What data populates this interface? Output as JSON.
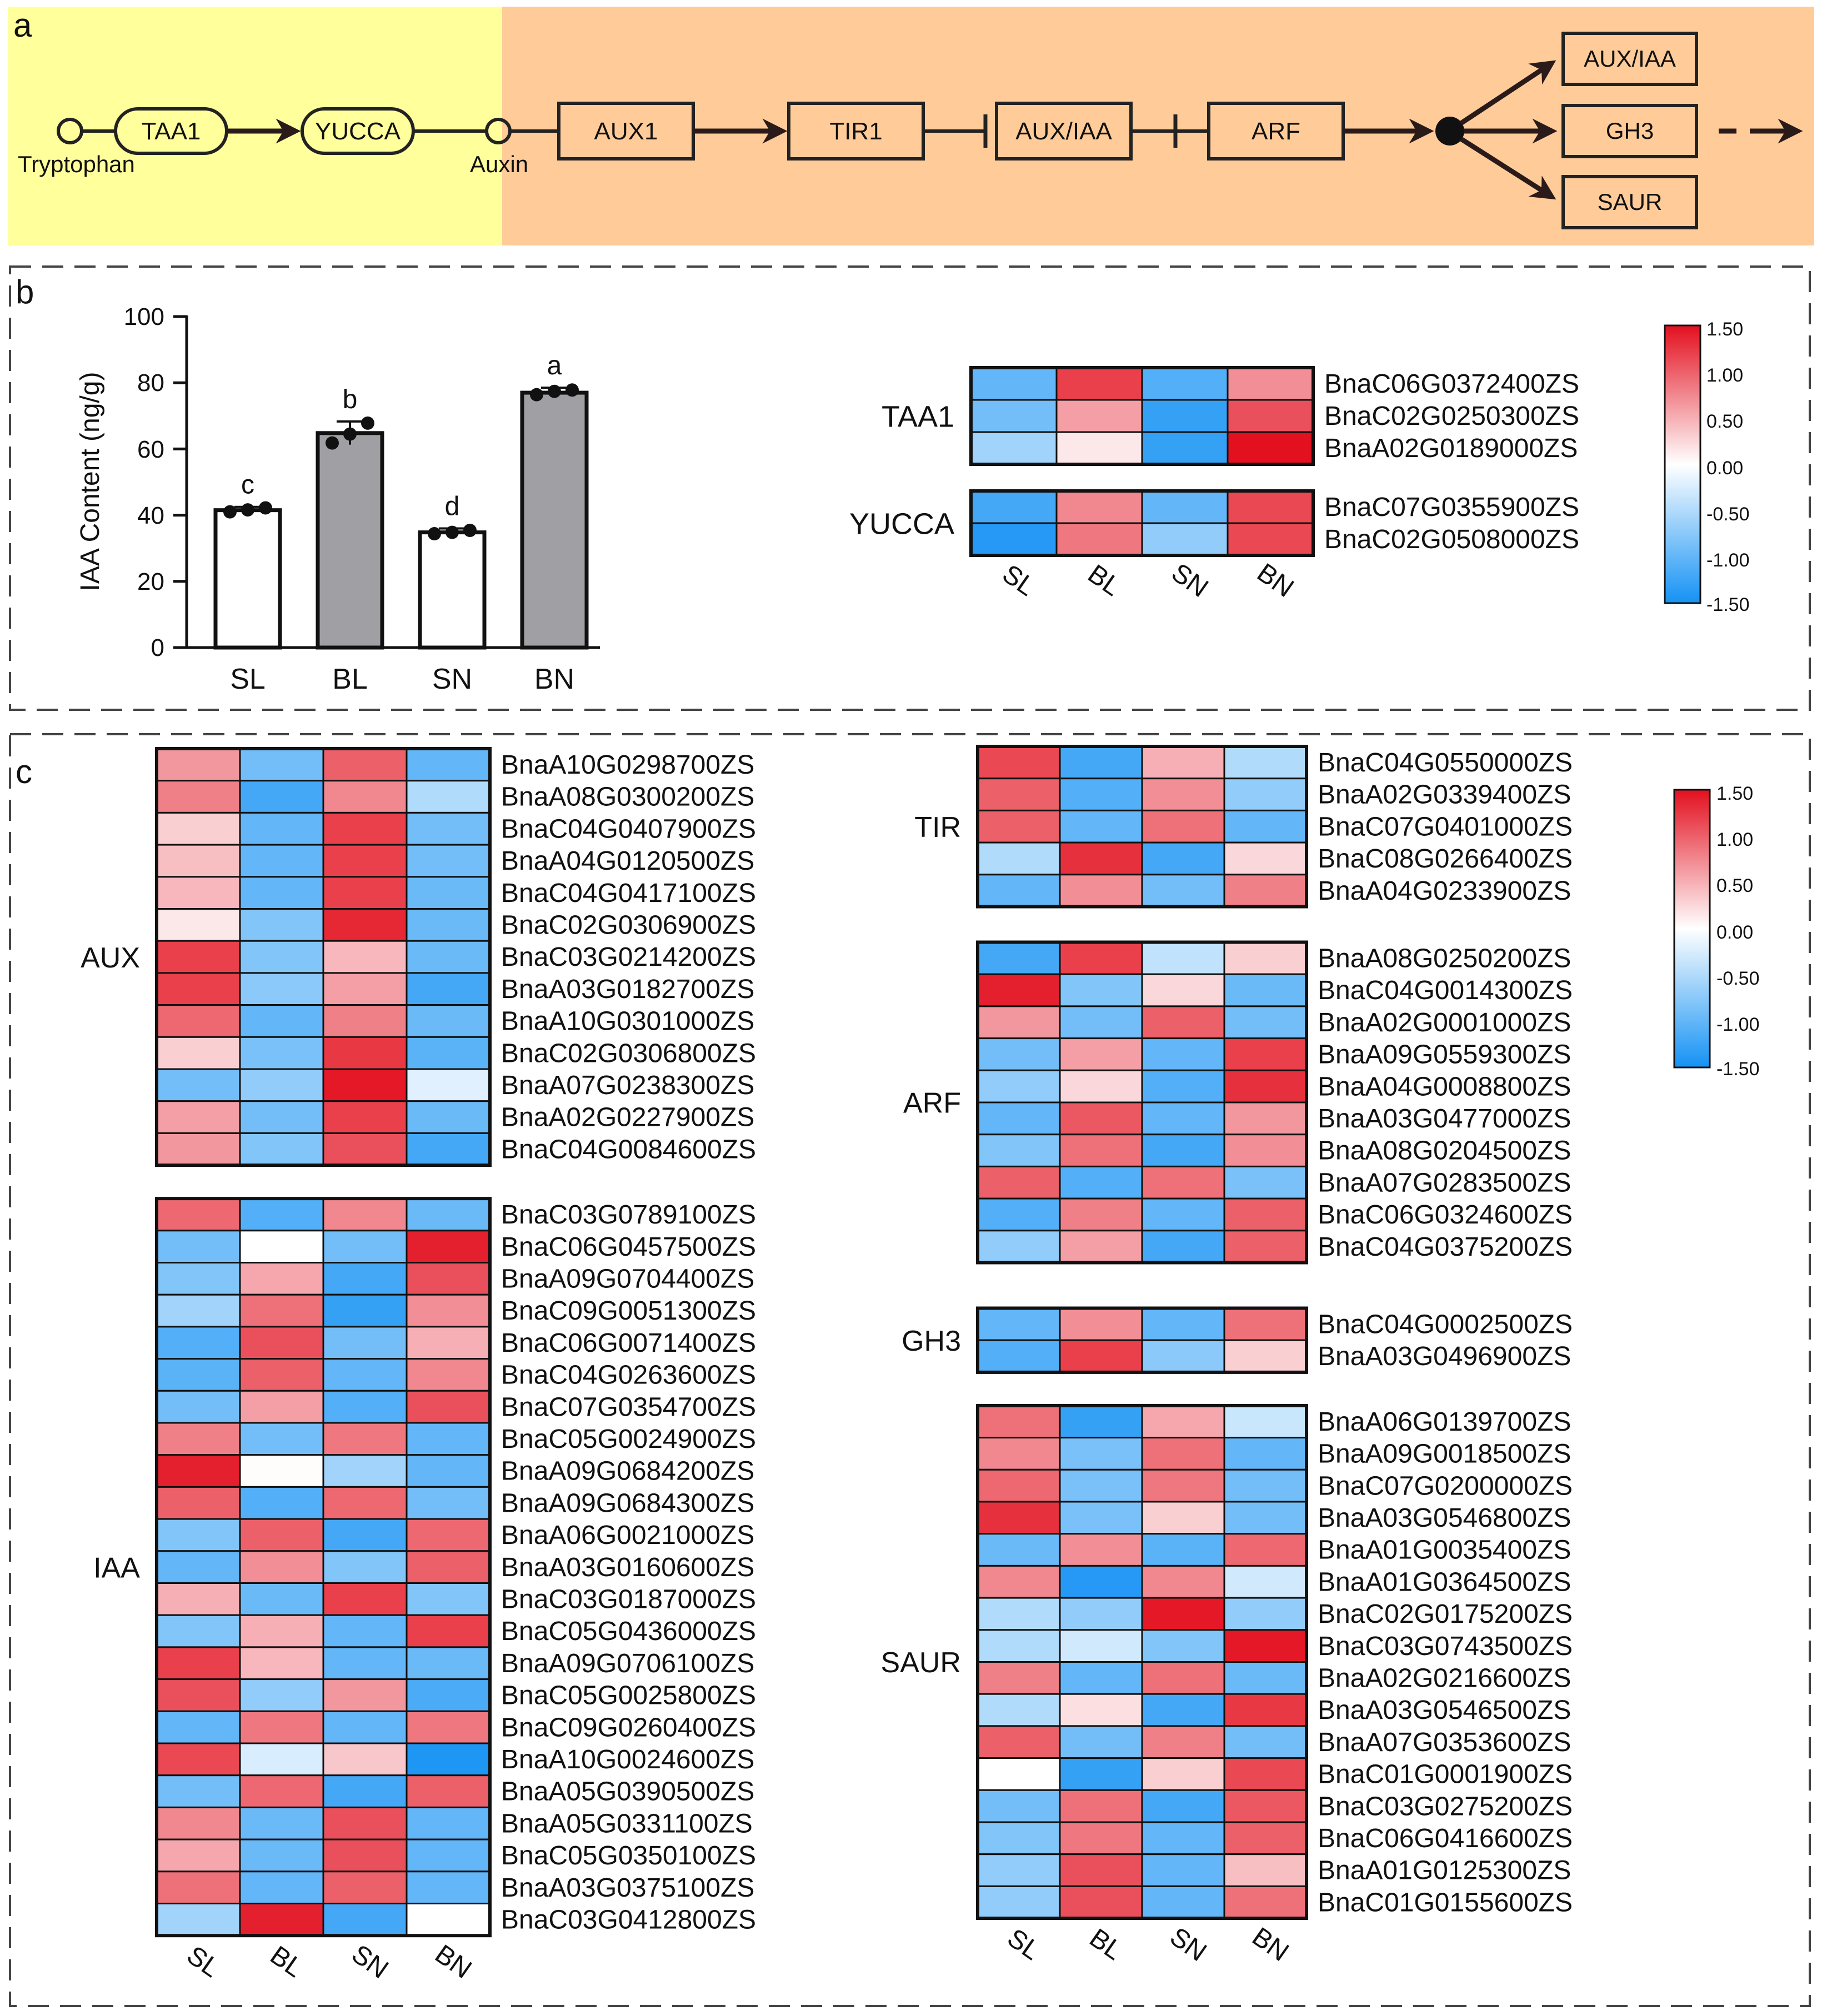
{
  "colors": {
    "panel_a_left_bg": "#ffff9c",
    "panel_a_right_bg": "#ffcc99",
    "bar_S": "#ffffff",
    "bar_B": "#a0a0a4",
    "scale_high": "#e3101f",
    "scale_mid": "#ffffff",
    "scale_low": "#1592f4"
  },
  "panel_a": {
    "label": "a",
    "start_label": "Tryptophan",
    "mid_label": "Auxin",
    "nodes": [
      "TAA1",
      "YUCCA"
    ],
    "signaling": [
      "AUX1",
      "TIR1",
      "AUX/IAA",
      "ARF"
    ],
    "outputs": [
      "AUX/IAA",
      "GH3",
      "SAUR"
    ]
  },
  "panel_b_label": "b",
  "panel_c_label": "c",
  "samples": [
    "SL",
    "BL",
    "SN",
    "BN"
  ],
  "chart_data": [
    {
      "type": "bar",
      "title": "",
      "xlabel": "",
      "ylabel": "IAA Content (ng/g)",
      "ylim": [
        0,
        100
      ],
      "yticks": [
        "0",
        "20",
        "40",
        "60",
        "80",
        "100"
      ],
      "categories": [
        "SL",
        "BL",
        "SN",
        "BN"
      ],
      "values": [
        41.5,
        64.8,
        34.8,
        77
      ],
      "errors": [
        1,
        3.5,
        1.2,
        1.5
      ],
      "letters": [
        "c",
        "b",
        "d",
        "a"
      ],
      "replicates": [
        [
          41,
          41.6,
          42.2
        ],
        [
          61.8,
          64.5,
          67.8
        ],
        [
          34.4,
          34.8,
          35.4
        ],
        [
          76.4,
          77.4,
          77.8
        ]
      ],
      "fills": [
        "S",
        "B",
        "S",
        "B"
      ]
    },
    {
      "type": "heatmap",
      "name": "biosynthesis",
      "xlabels": [
        "SL",
        "BL",
        "SN",
        "BN"
      ],
      "colorbar": {
        "range": [
          -1.5,
          1.5
        ],
        "ticks": [
          "1.50",
          "1.00",
          "0.50",
          "0.00",
          "-0.50",
          "-1.00",
          "-1.50"
        ]
      },
      "groups": [
        {
          "label": "TAA1",
          "rows": [
            {
              "gene": "BnaC06G0372400ZS",
              "values": [
                -1.0,
                1.2,
                -1.1,
                0.7
              ]
            },
            {
              "gene": "BnaC02G0250300ZS",
              "values": [
                -0.9,
                0.6,
                -1.3,
                1.1
              ]
            },
            {
              "gene": "BnaA02G0189000ZS",
              "values": [
                -0.6,
                0.15,
                -1.3,
                1.5
              ]
            }
          ]
        },
        {
          "label": "YUCCA",
          "rows": [
            {
              "gene": "BnaC07G0355900ZS",
              "values": [
                -1.2,
                0.75,
                -1.0,
                1.15
              ]
            },
            {
              "gene": "BnaC02G0508000ZS",
              "values": [
                -1.4,
                0.85,
                -0.7,
                1.15
              ]
            }
          ]
        }
      ]
    },
    {
      "type": "heatmap",
      "name": "signaling",
      "xlabels": [
        "SL",
        "BL",
        "SN",
        "BN"
      ],
      "colorbar": {
        "range": [
          -1.5,
          1.5
        ],
        "ticks": [
          "1.50",
          "1.00",
          "0.50",
          "0.00",
          "-0.50",
          "-1.00",
          "-1.50"
        ]
      },
      "groups": [
        {
          "label": "AUX",
          "rows": [
            {
              "gene": "BnaA10G0298700ZS",
              "values": [
                0.65,
                -0.9,
                1.0,
                -1.0
              ]
            },
            {
              "gene": "BnaA08G0300200ZS",
              "values": [
                0.8,
                -1.2,
                0.75,
                -0.5
              ]
            },
            {
              "gene": "BnaC04G0407900ZS",
              "values": [
                0.3,
                -1.0,
                1.2,
                -0.9
              ]
            },
            {
              "gene": "BnaA04G0120500ZS",
              "values": [
                0.4,
                -1.0,
                1.2,
                -0.9
              ]
            },
            {
              "gene": "BnaC04G0417100ZS",
              "values": [
                0.45,
                -1.0,
                1.2,
                -0.95
              ]
            },
            {
              "gene": "BnaC02G0306900ZS",
              "values": [
                0.15,
                -0.8,
                1.35,
                -0.95
              ]
            },
            {
              "gene": "BnaC03G0214200ZS",
              "values": [
                1.2,
                -0.8,
                0.45,
                -0.95
              ]
            },
            {
              "gene": "BnaA03G0182700ZS",
              "values": [
                1.2,
                -0.75,
                0.6,
                -1.2
              ]
            },
            {
              "gene": "BnaA10G0301000ZS",
              "values": [
                0.95,
                -1.0,
                0.8,
                -0.95
              ]
            },
            {
              "gene": "BnaC02G0306800ZS",
              "values": [
                0.3,
                -0.85,
                1.25,
                -1.05
              ]
            },
            {
              "gene": "BnaA07G0238300ZS",
              "values": [
                -0.9,
                -0.7,
                1.45,
                -0.2
              ]
            },
            {
              "gene": "BnaA02G0227900ZS",
              "values": [
                0.6,
                -0.9,
                1.2,
                -0.95
              ]
            },
            {
              "gene": "BnaC04G0084600ZS",
              "values": [
                0.65,
                -0.8,
                1.1,
                -1.2
              ]
            }
          ]
        },
        {
          "label": "IAA",
          "rows": [
            {
              "gene": "BnaC03G0789100ZS",
              "values": [
                0.95,
                -1.1,
                0.75,
                -0.95
              ]
            },
            {
              "gene": "BnaC06G0457500ZS",
              "values": [
                -0.9,
                0.0,
                -0.9,
                1.4
              ]
            },
            {
              "gene": "BnaA09G0704400ZS",
              "values": [
                -0.8,
                0.55,
                -1.2,
                1.1
              ]
            },
            {
              "gene": "BnaC09G0051300ZS",
              "values": [
                -0.6,
                0.9,
                -1.3,
                0.7
              ]
            },
            {
              "gene": "BnaC06G0071400ZS",
              "values": [
                -1.1,
                1.1,
                -0.9,
                0.5
              ]
            },
            {
              "gene": "BnaC04G0263600ZS",
              "values": [
                -1.05,
                1.0,
                -1.0,
                0.75
              ]
            },
            {
              "gene": "BnaC07G0354700ZS",
              "values": [
                -0.9,
                0.6,
                -1.1,
                1.1
              ]
            },
            {
              "gene": "BnaC05G0024900ZS",
              "values": [
                0.8,
                -0.9,
                0.85,
                -1.0
              ]
            },
            {
              "gene": "BnaA09G0684200ZS",
              "values": [
                1.4,
                0.02,
                -0.6,
                -1.0
              ]
            },
            {
              "gene": "BnaA09G0684300ZS",
              "values": [
                1.0,
                -1.1,
                0.95,
                -0.9
              ]
            },
            {
              "gene": "BnaA06G0021000ZS",
              "values": [
                -0.8,
                1.0,
                -1.2,
                0.95
              ]
            },
            {
              "gene": "BnaA03G0160600ZS",
              "values": [
                -1.0,
                0.7,
                -0.8,
                1.0
              ]
            },
            {
              "gene": "BnaC03G0187000ZS",
              "values": [
                0.5,
                -0.95,
                1.2,
                -0.8
              ]
            },
            {
              "gene": "BnaC05G0436000ZS",
              "values": [
                -0.8,
                0.5,
                -1.0,
                1.2
              ]
            },
            {
              "gene": "BnaA09G0706100ZS",
              "values": [
                1.2,
                0.45,
                -1.0,
                -0.95
              ]
            },
            {
              "gene": "BnaC05G0025800ZS",
              "values": [
                1.1,
                -0.7,
                0.65,
                -1.15
              ]
            },
            {
              "gene": "BnaC09G0260400ZS",
              "values": [
                -1.0,
                0.85,
                -1.0,
                0.85
              ]
            },
            {
              "gene": "BnaA10G0024600ZS",
              "values": [
                1.15,
                -0.25,
                0.35,
                -1.45
              ]
            },
            {
              "gene": "BnaA05G0390500ZS",
              "values": [
                -0.9,
                0.95,
                -1.2,
                1.0
              ]
            },
            {
              "gene": "BnaA05G0331100ZS",
              "values": [
                0.75,
                -0.95,
                1.1,
                -1.0
              ]
            },
            {
              "gene": "BnaC05G0350100ZS",
              "values": [
                0.55,
                -0.95,
                1.1,
                -1.0
              ]
            },
            {
              "gene": "BnaA03G0375100ZS",
              "values": [
                0.9,
                -1.0,
                1.0,
                -1.0
              ]
            },
            {
              "gene": "BnaC03G0412800ZS",
              "values": [
                -0.6,
                1.4,
                -1.2,
                0.0
              ]
            }
          ]
        }
      ]
    },
    {
      "type": "heatmap",
      "name": "response",
      "xlabels": [
        "SL",
        "BL",
        "SN",
        "BN"
      ],
      "colorbar": {
        "range": [
          -1.5,
          1.5
        ],
        "ticks": [
          "1.50",
          "1.00",
          "0.50",
          "0.00",
          "-0.50",
          "-1.00",
          "-1.50"
        ]
      },
      "groups": [
        {
          "label": "TIR",
          "rows": [
            {
              "gene": "BnaC04G0550000ZS",
              "values": [
                1.15,
                -1.2,
                0.5,
                -0.5
              ]
            },
            {
              "gene": "BnaA02G0339400ZS",
              "values": [
                1.0,
                -1.1,
                0.7,
                -0.7
              ]
            },
            {
              "gene": "BnaC07G0401000ZS",
              "values": [
                1.0,
                -1.0,
                0.9,
                -1.0
              ]
            },
            {
              "gene": "BnaC08G0266400ZS",
              "values": [
                -0.5,
                1.3,
                -1.2,
                0.25
              ]
            },
            {
              "gene": "BnaA04G0233900ZS",
              "values": [
                -1.0,
                0.7,
                -0.9,
                0.8
              ]
            }
          ]
        },
        {
          "label": "ARF",
          "rows": [
            {
              "gene": "BnaA08G0250200ZS",
              "values": [
                -1.2,
                1.2,
                -0.4,
                0.3
              ]
            },
            {
              "gene": "BnaC04G0014300ZS",
              "values": [
                1.4,
                -0.8,
                0.25,
                -0.95
              ]
            },
            {
              "gene": "BnaA02G0001000ZS",
              "values": [
                0.65,
                -0.9,
                1.0,
                -0.9
              ]
            },
            {
              "gene": "BnaA09G0559300ZS",
              "values": [
                -0.9,
                0.6,
                -1.0,
                1.2
              ]
            },
            {
              "gene": "BnaA04G0008800ZS",
              "values": [
                -0.7,
                0.25,
                -1.1,
                1.3
              ]
            },
            {
              "gene": "BnaA03G0477000ZS",
              "values": [
                -1.0,
                1.05,
                -1.0,
                0.65
              ]
            },
            {
              "gene": "BnaA08G0204500ZS",
              "values": [
                -0.8,
                0.9,
                -1.2,
                0.7
              ]
            },
            {
              "gene": "BnaA07G0283500ZS",
              "values": [
                1.0,
                -1.1,
                0.9,
                -0.85
              ]
            },
            {
              "gene": "BnaC06G0324600ZS",
              "values": [
                -1.1,
                0.8,
                -1.0,
                1.0
              ]
            },
            {
              "gene": "BnaC04G0375200ZS",
              "values": [
                -0.7,
                0.6,
                -1.2,
                1.0
              ]
            }
          ]
        },
        {
          "label": "GH3",
          "rows": [
            {
              "gene": "BnaC04G0002500ZS",
              "values": [
                -1.0,
                0.7,
                -1.0,
                0.9
              ]
            },
            {
              "gene": "BnaA03G0496900ZS",
              "values": [
                -1.1,
                1.2,
                -0.75,
                0.3
              ]
            }
          ]
        },
        {
          "label": "SAUR",
          "rows": [
            {
              "gene": "BnaA06G0139700ZS",
              "values": [
                0.9,
                -1.3,
                0.55,
                -0.35
              ]
            },
            {
              "gene": "BnaA09G0018500ZS",
              "values": [
                0.75,
                -0.85,
                0.9,
                -1.0
              ]
            },
            {
              "gene": "BnaC07G0200000ZS",
              "values": [
                0.95,
                -0.85,
                0.85,
                -0.9
              ]
            },
            {
              "gene": "BnaA03G0546800ZS",
              "values": [
                1.3,
                -0.85,
                0.3,
                -0.9
              ]
            },
            {
              "gene": "BnaA01G0035400ZS",
              "values": [
                -0.95,
                0.7,
                -1.05,
                0.95
              ]
            },
            {
              "gene": "BnaA01G0364500ZS",
              "values": [
                0.75,
                -1.4,
                0.75,
                -0.3
              ]
            },
            {
              "gene": "BnaC02G0175200ZS",
              "values": [
                -0.5,
                -0.7,
                1.45,
                -0.7
              ]
            },
            {
              "gene": "BnaC03G0743500ZS",
              "values": [
                -0.5,
                -0.3,
                -0.8,
                1.45
              ]
            },
            {
              "gene": "BnaA02G0216600ZS",
              "values": [
                0.8,
                -1.0,
                0.9,
                -0.95
              ]
            },
            {
              "gene": "BnaA03G0546500ZS",
              "values": [
                -0.5,
                0.2,
                -1.2,
                1.25
              ]
            },
            {
              "gene": "BnaA07G0353600ZS",
              "values": [
                1.0,
                -0.9,
                0.8,
                -0.9
              ]
            },
            {
              "gene": "BnaC01G0001900ZS",
              "values": [
                0.0,
                -1.3,
                0.3,
                1.15
              ]
            },
            {
              "gene": "BnaC03G0275200ZS",
              "values": [
                -0.9,
                0.9,
                -1.2,
                1.05
              ]
            },
            {
              "gene": "BnaC06G0416600ZS",
              "values": [
                -0.8,
                0.85,
                -1.0,
                1.0
              ]
            },
            {
              "gene": "BnaA01G0125300ZS",
              "values": [
                -0.7,
                1.1,
                -1.0,
                0.4
              ]
            },
            {
              "gene": "BnaC01G0155600ZS",
              "values": [
                -0.7,
                1.1,
                -1.0,
                0.9
              ]
            }
          ]
        }
      ]
    }
  ]
}
